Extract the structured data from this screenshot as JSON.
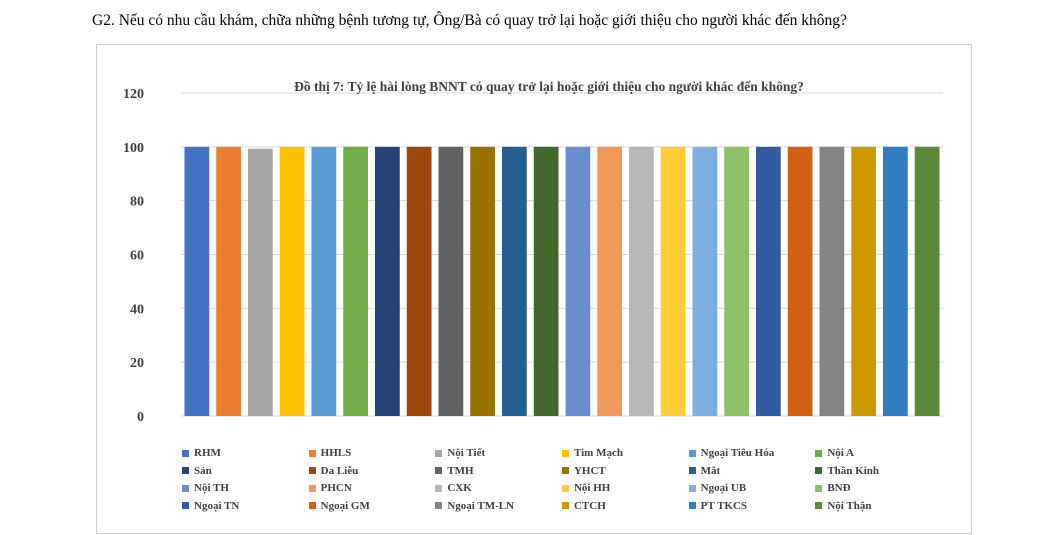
{
  "question": "G2. Nếu có nhu cầu khám, chữa những bệnh tương tự, Ông/Bà có quay trở lại hoặc giới thiệu cho người khác đến không?",
  "chart_data": {
    "type": "bar",
    "title": "Đồ thị 7: Tỷ lệ hài lòng BNNT có quay trở lại hoặc giới thiệu cho người khác đến không?",
    "xlabel": "",
    "ylabel": "",
    "ylim": [
      0,
      120
    ],
    "yticks": [
      0,
      20,
      40,
      60,
      80,
      100,
      120
    ],
    "grid": true,
    "legend_position": "bottom",
    "series": [
      {
        "name": "RHM",
        "value": 100,
        "color": "#4472C4"
      },
      {
        "name": "HHLS",
        "value": 100,
        "color": "#ED7D31"
      },
      {
        "name": "Nội Tiết",
        "value": 99.3,
        "color": "#A5A5A5"
      },
      {
        "name": "Tim Mạch",
        "value": 100,
        "color": "#FFC000"
      },
      {
        "name": "Ngoại Tiêu Hóa",
        "value": 100,
        "color": "#5B9BD5"
      },
      {
        "name": "Nội A",
        "value": 100,
        "color": "#70AD47"
      },
      {
        "name": "Sản",
        "value": 100,
        "color": "#264478"
      },
      {
        "name": "Da Liễu",
        "value": 100,
        "color": "#9E480E"
      },
      {
        "name": "TMH",
        "value": 100,
        "color": "#636363"
      },
      {
        "name": "YHCT",
        "value": 100,
        "color": "#997300"
      },
      {
        "name": "Mắt",
        "value": 100,
        "color": "#255E91"
      },
      {
        "name": "Thần Kinh",
        "value": 100,
        "color": "#43682B"
      },
      {
        "name": " Nội TH",
        "value": 100,
        "color": "#698ED0"
      },
      {
        "name": "PHCN",
        "value": 100,
        "color": "#F1975A"
      },
      {
        "name": "CXK",
        "value": 100,
        "color": "#B7B7B7"
      },
      {
        "name": "Nội HH",
        "value": 100,
        "color": "#FFCD33"
      },
      {
        "name": "Ngoại UB",
        "value": 100,
        "color": "#7CAFDD"
      },
      {
        "name": " BNĐ",
        "value": 100,
        "color": "#8CC168"
      },
      {
        "name": "Ngoại TN",
        "value": 100,
        "color": "#335AA1"
      },
      {
        "name": "Ngoại GM",
        "value": 100,
        "color": "#D26012"
      },
      {
        "name": "Ngoại TM-LN",
        "value": 100,
        "color": "#848484"
      },
      {
        "name": "CTCH",
        "value": 100,
        "color": "#CC9A00"
      },
      {
        "name": "PT TKCS",
        "value": 100,
        "color": "#327DC2"
      },
      {
        "name": "Nội Thận",
        "value": 100,
        "color": "#5A8A39"
      }
    ]
  }
}
